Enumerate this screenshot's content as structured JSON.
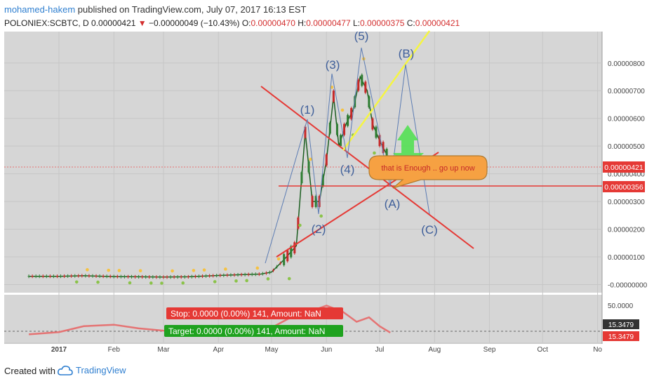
{
  "header": {
    "author": "mohamed-hakem",
    "published": "published on TradingView.com, July 07, 2017 16:13 EST",
    "symbol": "POLONIEX:SCBTC, D",
    "last": "0.00000421",
    "change": "−0.00000049 (−10.43%)",
    "o_label": "O:",
    "o_value": "0.00000470",
    "h_label": "H:",
    "h_value": "0.00000477",
    "l_label": "L:",
    "l_value": "0.00000375",
    "c_label": "C:",
    "c_value": "0.00000421"
  },
  "footer": {
    "created_with": "Created with",
    "brand": "TradingView"
  },
  "colors": {
    "up": "#2e7d32",
    "down": "#c62828",
    "trendline": "#e53935",
    "fib_line": "#f5f542",
    "wave_line": "#5c7cb3",
    "rsi": "#e57373",
    "callout_fill": "#f6a142",
    "green_arrow": "#4ce04c"
  },
  "chart_data": [
    {
      "type": "line",
      "title": "POLONIEX:SCBTC, D",
      "x_tick_labels": [
        "2017",
        "Feb",
        "Mar",
        "Apr",
        "May",
        "Jun",
        "Jul",
        "Aug",
        "Sep",
        "Oct",
        "No"
      ],
      "y_tick_labels": [
        "0.00000800",
        "0.00000700",
        "0.00000600",
        "0.00000500",
        "0.00000400",
        "0.00000300",
        "0.00000200",
        "0.00000100",
        "-0.00000000"
      ],
      "ylim": [
        -2e-07,
        8.8e-06
      ],
      "series": [
        {
          "x": [
            "Dec 15",
            "Jan 1",
            "Jan 15",
            "Feb 1",
            "Feb 15",
            "Mar 1",
            "Mar 15",
            "Apr 1",
            "Apr 15",
            "Apr 25",
            "May 1",
            "May 8",
            "May 15",
            "May 20",
            "May 24",
            "May 28",
            "Jun 1",
            "Jun 5",
            "Jun 8",
            "Jun 12",
            "Jun 16",
            "Jun 20",
            "Jun 24",
            "Jun 27",
            "Jul 1",
            "Jul 5",
            "Jul 7"
          ],
          "values": [
            3e-07,
            3e-07,
            3.2e-07,
            2.9e-07,
            2.8e-07,
            2.7e-07,
            2.8e-07,
            3.3e-07,
            3.6e-07,
            3.8e-07,
            4.5e-07,
            9e-07,
            1.4e-06,
            5.5e-06,
            3e-06,
            3e-06,
            4.5e-06,
            6.8e-06,
            5e-06,
            5.8e-06,
            6.3e-06,
            7.5e-06,
            7e-06,
            5.8e-06,
            5.2e-06,
            4.7e-06,
            4.21e-06
          ]
        }
      ],
      "last_price_label": "0.00000421",
      "horizontal_level_label": "0.00000356",
      "wave_labels": [
        "(1)",
        "(2)",
        "(3)",
        "(4)",
        "(5)",
        "(A)",
        "(B)",
        "(C)"
      ],
      "annotation": "that is Enough .. go up now"
    },
    {
      "type": "line",
      "title": "",
      "y_tick_labels": [
        "50.0000"
      ],
      "current_value_label": "15.3479",
      "series": [
        {
          "x": [
            "Dec 15",
            "Jan 1",
            "Jan 15",
            "Feb 1",
            "Feb 15",
            "Mar 1",
            "Mar 15",
            "Apr 1",
            "Apr 15",
            "May 1",
            "May 15",
            "May 25",
            "Jun 1",
            "Jun 10",
            "Jun 18",
            "Jun 25",
            "Jul 1",
            "Jul 7"
          ],
          "values": [
            13,
            16,
            24,
            26,
            21,
            18,
            16,
            18,
            17,
            22,
            40,
            46,
            52,
            44,
            30,
            36,
            24,
            15.3479
          ]
        }
      ],
      "stop_label": "Stop: 0.0000 (0.00%) 141, Amount: NaN",
      "target_label": "Target: 0.0000 (0.00%) 141, Amount: NaN"
    }
  ]
}
